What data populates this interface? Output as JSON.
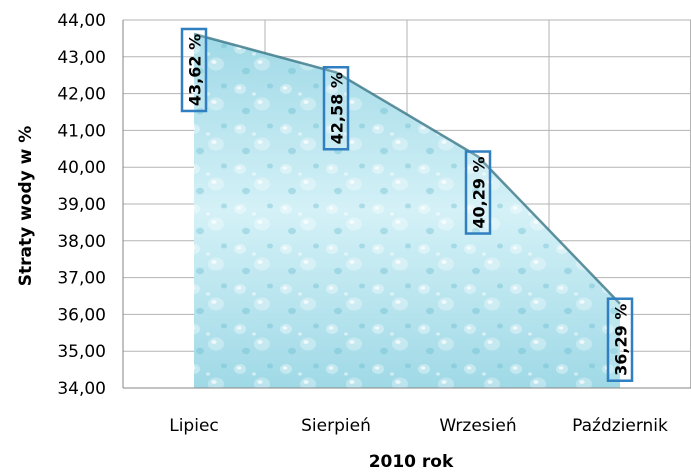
{
  "chart_data": {
    "type": "area",
    "categories": [
      "Lipiec",
      "Sierpień",
      "Wrzesień",
      "Październik"
    ],
    "series": [
      {
        "values": [
          43.62,
          42.58,
          40.29,
          36.29
        ],
        "labels": [
          "43,62 %",
          "42,58 %",
          "40,29 %",
          "36,29 %"
        ]
      }
    ],
    "title": "",
    "xlabel": "2010 rok",
    "ylabel": "Straty wody w %",
    "ylim": [
      34,
      44
    ],
    "yticks": [
      "34,00",
      "35,00",
      "36,00",
      "37,00",
      "38,00",
      "39,00",
      "40,00",
      "41,00",
      "42,00",
      "43,00",
      "44,00"
    ],
    "grid": true,
    "legend": "none",
    "colors": {
      "fill_light": "#d4f1f7",
      "fill_mid": "#9fd9e6",
      "fill_dark": "#6cc2d6",
      "edge": "#2d6d7f",
      "label_border": "#2f7fc1",
      "grid": "#b3b3b3"
    }
  }
}
